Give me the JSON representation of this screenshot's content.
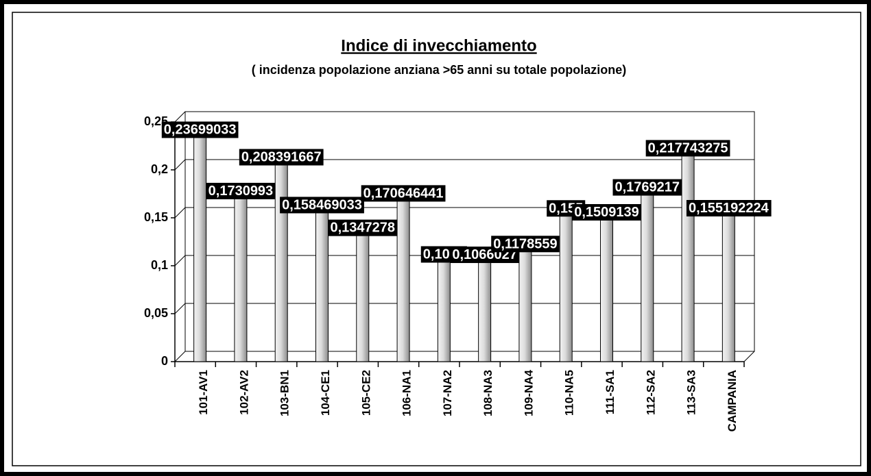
{
  "chart_data": {
    "type": "bar",
    "title": "Indice di invecchiamento",
    "subtitle": "( incidenza popolazione anziana >65 anni su totale popolazione)",
    "categories": [
      "101-AV1",
      "102-AV2",
      "103-BN1",
      "104-CE1",
      "105-CE2",
      "106-NA1",
      "107-NA2",
      "108-NA3",
      "109-NA4",
      "110-NA5",
      "111-SA1",
      "112-SA2",
      "113-SA3",
      "CAMPANIA"
    ],
    "values": [
      0.23699033,
      0.1730993,
      0.208391667,
      0.158469033,
      0.1347278,
      0.170646441,
      0.107,
      0.1066027,
      0.1178559,
      0.155,
      0.1509139,
      0.1769217,
      0.217743275,
      0.155192224
    ],
    "value_labels": [
      "0,23699033",
      "0,1730993",
      "0,208391667",
      "0,158469033",
      "0,1347278",
      "0,170646441",
      "0,1070",
      "0,1066027",
      "0,1178559",
      "0,155",
      "0,1509139",
      "0,1769217",
      "0,217743275",
      "0,155192224"
    ],
    "color": "#c8c8c8",
    "ylim": [
      0,
      0.25
    ],
    "yticks": [
      0,
      {
        "value": 0.05,
        "label": "0,05"
      },
      {
        "value": 0.1,
        "label": "0,1"
      },
      {
        "value": 0.15,
        "label": "0,15"
      },
      {
        "value": 0.2,
        "label": "0,2"
      },
      {
        "value": 0.25,
        "label": "0,25"
      }
    ],
    "grid": true
  }
}
